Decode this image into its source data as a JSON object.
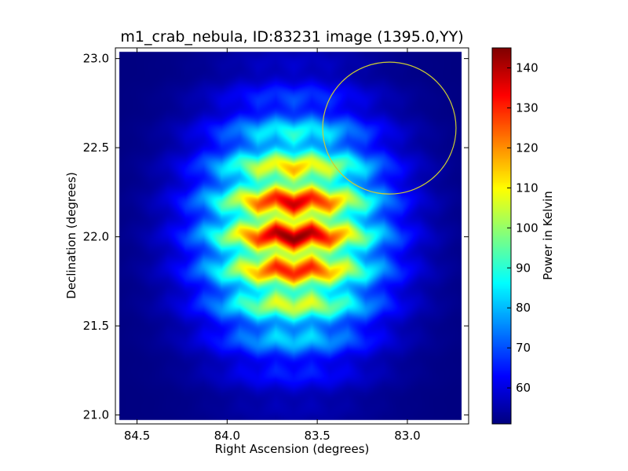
{
  "chart_data": {
    "type": "heatmap",
    "title": "m1_crab_nebula, ID:83231 image (1395.0,YY)",
    "xlabel": "Right Ascension (degrees)",
    "ylabel": "Declination (degrees)",
    "xlim": [
      84.62,
      82.66
    ],
    "ylim": [
      20.95,
      23.06
    ],
    "x_ticks": [
      84.5,
      84.0,
      83.5,
      83.0
    ],
    "x_tick_labels": [
      "84.5",
      "84.0",
      "83.5",
      "83.0"
    ],
    "y_ticks": [
      21.0,
      21.5,
      22.0,
      22.5,
      23.0
    ],
    "y_tick_labels": [
      "21.0",
      "21.5",
      "22.0",
      "22.5",
      "23.0"
    ],
    "colormap": "jet",
    "colorbar": {
      "label": "Power in Kelvin",
      "vmin": 51,
      "vmax": 145,
      "ticks": [
        60,
        70,
        80,
        90,
        100,
        110,
        120,
        130,
        140
      ],
      "tick_labels": [
        "60",
        "70",
        "80",
        "90",
        "100",
        "110",
        "120",
        "130",
        "140"
      ]
    },
    "source": {
      "ra": 83.63,
      "dec": 22.03,
      "peak_kelvin": 144,
      "background_kelvin": 51,
      "sigma_ra": 0.33,
      "sigma_dec": 0.42,
      "fringe_period_dec": 0.2
    },
    "circle": {
      "ra": 83.1,
      "dec": 22.61,
      "radius_deg": 0.37,
      "color": "#cccc33"
    },
    "data_region": {
      "ra_min": 82.7,
      "ra_max": 84.6,
      "dec_min": 20.97,
      "dec_max": 23.04
    }
  }
}
